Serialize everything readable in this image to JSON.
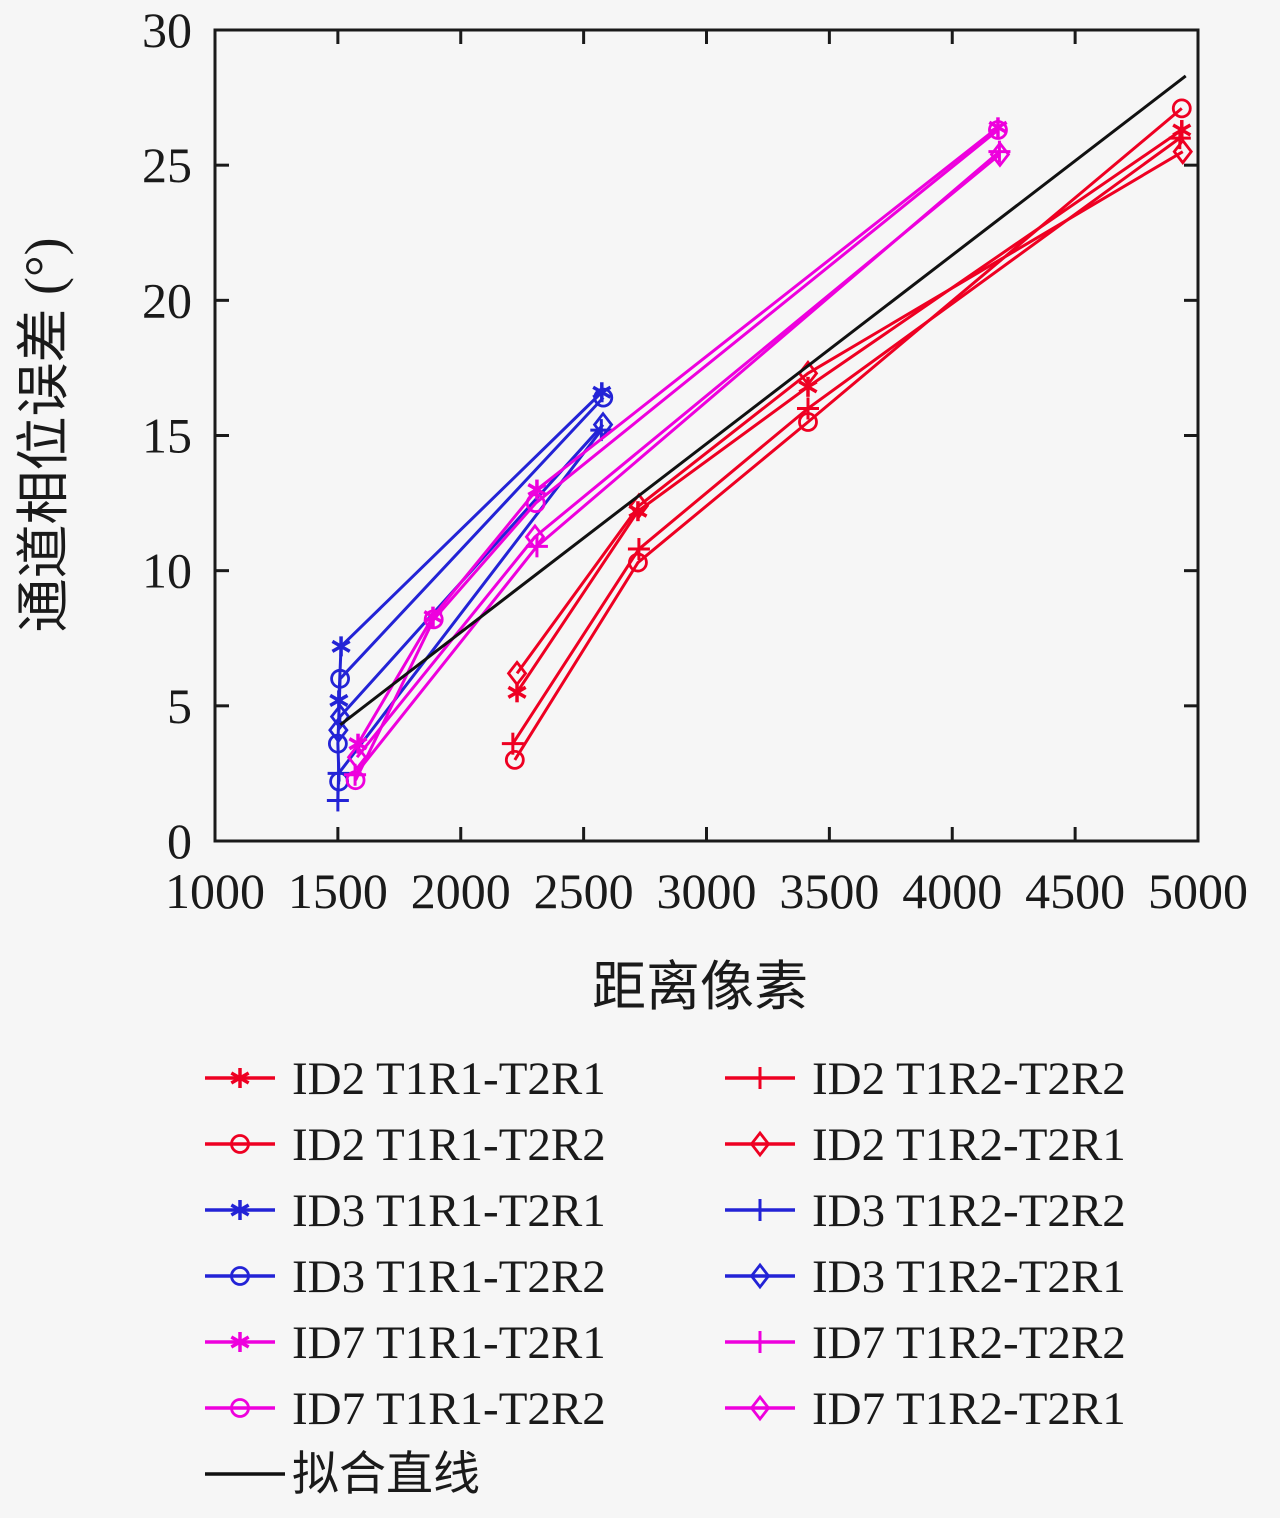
{
  "chart_data": {
    "type": "line",
    "title": "",
    "xlabel": "距离像素",
    "ylabel": "通道相位误差 (°)",
    "xlim": [
      1000,
      5000
    ],
    "ylim": [
      0,
      30
    ],
    "x_ticks": [
      1000,
      1500,
      2000,
      2500,
      3000,
      3500,
      4000,
      4500,
      5000
    ],
    "y_ticks": [
      0,
      5,
      10,
      15,
      20,
      25,
      30
    ],
    "grid": false,
    "background": "#f6f6f6",
    "axis_color": "#1a1a1a",
    "legend_position": "below, two columns, fit line last row",
    "colors": {
      "ID2": "#ee0022",
      "ID3": "#2323d6",
      "ID7": "#ee00dd",
      "fit": "#111111"
    },
    "series": [
      {
        "name": "ID2 T1R1-T2R1",
        "color": "#ee0022",
        "marker": "asterisk",
        "points": [
          [
            2229,
            5.5
          ],
          [
            2721,
            12.2
          ],
          [
            3413,
            16.8
          ],
          [
            4934,
            26.3
          ]
        ]
      },
      {
        "name": "ID2 T1R2-T2R2",
        "color": "#ee0022",
        "marker": "plus",
        "points": [
          [
            2212,
            3.6
          ],
          [
            2725,
            10.8
          ],
          [
            3413,
            16.0
          ],
          [
            4926,
            26.0
          ]
        ]
      },
      {
        "name": "ID2 T1R1-T2R2",
        "color": "#ee0022",
        "marker": "circle",
        "points": [
          [
            2220,
            3.0
          ],
          [
            2721,
            10.3
          ],
          [
            3413,
            15.5
          ],
          [
            4934,
            27.1
          ]
        ]
      },
      {
        "name": "ID2 T1R2-T2R1",
        "color": "#ee0022",
        "marker": "diamond",
        "points": [
          [
            2229,
            6.2
          ],
          [
            2725,
            12.4
          ],
          [
            3413,
            17.3
          ],
          [
            4938,
            25.5
          ]
        ]
      },
      {
        "name": "ID3 T1R1-T2R1",
        "color": "#2323d6",
        "marker": "asterisk",
        "points": [
          [
            1504,
            5.2
          ],
          [
            1513,
            7.2
          ],
          [
            2574,
            16.6
          ]
        ]
      },
      {
        "name": "ID3 T1R2-T2R2",
        "color": "#2323d6",
        "marker": "plus",
        "points": [
          [
            1500,
            1.5
          ],
          [
            1503,
            2.5
          ],
          [
            2572,
            15.2
          ]
        ]
      },
      {
        "name": "ID3 T1R1-T2R2",
        "color": "#2323d6",
        "marker": "circle",
        "points": [
          [
            1505,
            2.2
          ],
          [
            1500,
            3.6
          ],
          [
            1509,
            6.0
          ],
          [
            2580,
            16.4
          ]
        ]
      },
      {
        "name": "ID3 T1R2-T2R1",
        "color": "#2323d6",
        "marker": "diamond",
        "points": [
          [
            1502,
            4.1
          ],
          [
            1509,
            4.6
          ],
          [
            2579,
            15.4
          ]
        ]
      },
      {
        "name": "ID7 T1R1-T2R1",
        "color": "#ee00dd",
        "marker": "asterisk",
        "points": [
          [
            1582,
            3.6
          ],
          [
            1887,
            8.3
          ],
          [
            2310,
            13.0
          ],
          [
            4186,
            26.4
          ]
        ]
      },
      {
        "name": "ID7 T1R2-T2R2",
        "color": "#ee00dd",
        "marker": "plus",
        "points": [
          [
            1570,
            2.45
          ],
          [
            2310,
            10.9
          ],
          [
            4192,
            25.5
          ]
        ]
      },
      {
        "name": "ID7 T1R1-T2R2",
        "color": "#ee00dd",
        "marker": "circle",
        "points": [
          [
            1572,
            2.25
          ],
          [
            1890,
            8.2
          ],
          [
            2305,
            12.5
          ],
          [
            4186,
            26.3
          ]
        ]
      },
      {
        "name": "ID7 T1R2-T2R1",
        "color": "#ee00dd",
        "marker": "diamond",
        "points": [
          [
            1578,
            3.1
          ],
          [
            2302,
            11.25
          ],
          [
            4194,
            25.4
          ]
        ]
      },
      {
        "name": "拟合直线",
        "color": "#111111",
        "marker": "none",
        "points": [
          [
            1510,
            4.3
          ],
          [
            4950,
            28.3
          ]
        ]
      }
    ]
  }
}
